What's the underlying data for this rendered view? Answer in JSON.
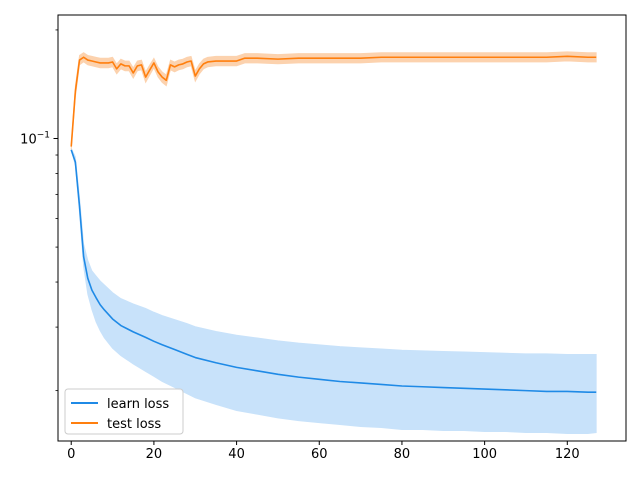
{
  "chart_data": {
    "type": "line",
    "title": "",
    "xlabel": "",
    "ylabel": "",
    "xlim": [
      -3.2,
      134.2
    ],
    "x_ticks": [
      0,
      20,
      40,
      60,
      80,
      100,
      120
    ],
    "x_tick_labels": [
      "0",
      "20",
      "40",
      "60",
      "80",
      "100",
      "120"
    ],
    "y_scale": "log",
    "ylim": [
      0.0145,
      0.22
    ],
    "y_major_ticks": [
      0.1
    ],
    "y_major_tick_labels": [
      "10^-1"
    ],
    "y_minor_ticks": [
      0.02,
      0.03,
      0.04,
      0.05,
      0.06,
      0.07,
      0.08,
      0.09,
      0.2
    ],
    "grid": false,
    "legend": {
      "placement": "lower-left",
      "entries": [
        "learn loss",
        "test loss"
      ]
    },
    "series": [
      {
        "name": "learn loss",
        "color": "#1f8ae6",
        "band_color": "#c8e2fa",
        "x": [
          0,
          1,
          2,
          3,
          4,
          5,
          6,
          7,
          8,
          10,
          12,
          15,
          18,
          20,
          22,
          25,
          28,
          30,
          35,
          40,
          45,
          50,
          55,
          60,
          65,
          70,
          75,
          80,
          85,
          90,
          95,
          100,
          105,
          110,
          115,
          120,
          125,
          127
        ],
        "values": [
          0.093,
          0.086,
          0.065,
          0.047,
          0.041,
          0.038,
          0.0362,
          0.0346,
          0.0335,
          0.0316,
          0.0303,
          0.0291,
          0.0281,
          0.0274,
          0.0268,
          0.026,
          0.0252,
          0.0247,
          0.0239,
          0.0232,
          0.0227,
          0.0222,
          0.0218,
          0.0215,
          0.0212,
          0.021,
          0.0208,
          0.0206,
          0.0205,
          0.0204,
          0.0203,
          0.0202,
          0.0201,
          0.02,
          0.0199,
          0.0199,
          0.0198,
          0.0198
        ],
        "band_lower": [
          0.093,
          0.084,
          0.062,
          0.044,
          0.037,
          0.0335,
          0.031,
          0.0293,
          0.028,
          0.0262,
          0.025,
          0.0237,
          0.0226,
          0.0219,
          0.0212,
          0.0204,
          0.0196,
          0.0191,
          0.0183,
          0.0176,
          0.0172,
          0.0168,
          0.0165,
          0.0163,
          0.0161,
          0.0159,
          0.0158,
          0.0156,
          0.0156,
          0.0155,
          0.0155,
          0.0154,
          0.0154,
          0.0153,
          0.0153,
          0.0152,
          0.0152,
          0.0153
        ],
        "band_upper": [
          0.094,
          0.089,
          0.069,
          0.051,
          0.046,
          0.043,
          0.0416,
          0.0403,
          0.0393,
          0.0374,
          0.036,
          0.0348,
          0.0338,
          0.033,
          0.0323,
          0.0315,
          0.0307,
          0.0301,
          0.0292,
          0.0285,
          0.028,
          0.0275,
          0.0271,
          0.0268,
          0.0265,
          0.0263,
          0.0261,
          0.0259,
          0.0258,
          0.0257,
          0.0256,
          0.0255,
          0.0254,
          0.0253,
          0.0253,
          0.0252,
          0.0252,
          0.0252
        ]
      },
      {
        "name": "test loss",
        "color": "#ff7f0e",
        "band_color": "#fcd2ae",
        "x": [
          0,
          1,
          2,
          3,
          4,
          5,
          6,
          7,
          8,
          9,
          10,
          11,
          12,
          13,
          14,
          15,
          16,
          17,
          18,
          19,
          20,
          21,
          22,
          23,
          24,
          25,
          26,
          27,
          28,
          29,
          30,
          31,
          32,
          33,
          35,
          38,
          40,
          42,
          45,
          50,
          55,
          60,
          65,
          70,
          75,
          80,
          85,
          90,
          95,
          100,
          105,
          110,
          115,
          120,
          125,
          127
        ],
        "values": [
          0.095,
          0.135,
          0.165,
          0.168,
          0.165,
          0.164,
          0.163,
          0.162,
          0.162,
          0.162,
          0.163,
          0.156,
          0.161,
          0.159,
          0.159,
          0.152,
          0.159,
          0.16,
          0.148,
          0.155,
          0.162,
          0.153,
          0.148,
          0.145,
          0.16,
          0.158,
          0.16,
          0.161,
          0.163,
          0.164,
          0.149,
          0.156,
          0.161,
          0.163,
          0.164,
          0.164,
          0.164,
          0.167,
          0.167,
          0.166,
          0.167,
          0.167,
          0.167,
          0.167,
          0.168,
          0.168,
          0.168,
          0.168,
          0.168,
          0.168,
          0.168,
          0.168,
          0.168,
          0.169,
          0.168,
          0.168
        ],
        "band_lower": [
          0.093,
          0.13,
          0.16,
          0.163,
          0.16,
          0.159,
          0.158,
          0.157,
          0.157,
          0.157,
          0.158,
          0.151,
          0.156,
          0.154,
          0.154,
          0.147,
          0.154,
          0.155,
          0.143,
          0.15,
          0.157,
          0.148,
          0.143,
          0.14,
          0.155,
          0.153,
          0.155,
          0.156,
          0.158,
          0.159,
          0.144,
          0.151,
          0.156,
          0.158,
          0.159,
          0.159,
          0.159,
          0.162,
          0.162,
          0.161,
          0.162,
          0.162,
          0.162,
          0.162,
          0.163,
          0.163,
          0.163,
          0.163,
          0.163,
          0.163,
          0.163,
          0.163,
          0.163,
          0.164,
          0.163,
          0.163
        ],
        "band_upper": [
          0.097,
          0.14,
          0.17,
          0.173,
          0.17,
          0.169,
          0.168,
          0.167,
          0.167,
          0.167,
          0.168,
          0.161,
          0.166,
          0.164,
          0.164,
          0.157,
          0.164,
          0.165,
          0.153,
          0.16,
          0.167,
          0.158,
          0.153,
          0.15,
          0.165,
          0.163,
          0.165,
          0.166,
          0.168,
          0.169,
          0.154,
          0.161,
          0.166,
          0.168,
          0.169,
          0.169,
          0.169,
          0.172,
          0.172,
          0.171,
          0.172,
          0.172,
          0.172,
          0.172,
          0.173,
          0.173,
          0.173,
          0.173,
          0.173,
          0.173,
          0.173,
          0.173,
          0.173,
          0.174,
          0.173,
          0.173
        ]
      }
    ]
  }
}
